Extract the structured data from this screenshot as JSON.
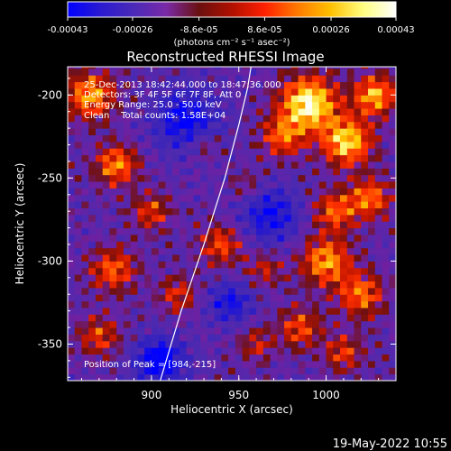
{
  "colors": {
    "background": "#000000",
    "foreground": "#ffffff",
    "colormap": [
      "#0000ff",
      "#2a1ad0",
      "#4a2ab8",
      "#7a2aa8",
      "#6a1010",
      "#b01000",
      "#ff2000",
      "#ff7a00",
      "#ffc000",
      "#ffff80",
      "#ffffff"
    ]
  },
  "colorbar": {
    "tick_labels": [
      "-0.00043",
      "-0.00026",
      "-8.6e-05",
      "8.6e-05",
      "0.00026",
      "0.00043"
    ],
    "unit_label": "(photons cm⁻² s⁻¹ asec⁻²)"
  },
  "image_text": {
    "time_range": "25-Dec-2013 18:42:44.000 to 18:47:36.000",
    "detectors": "Detectors: 3F 4F 5F 6F 7F 8F, Att 0",
    "energy_range": "Energy Range: 25.0 - 50.0 keV",
    "clean_counts": "Clean    Total counts: 1.58E+04",
    "peak_position": "Position of Peak = [984,-215]"
  },
  "footer": {
    "date": "19-May-2022 10:55"
  },
  "chart_data": {
    "type": "heatmap",
    "title": "Reconstructed RHESSI Image",
    "xlabel": "Heliocentric X (arcsec)",
    "ylabel": "Heliocentric Y (arcsec)",
    "xlim": [
      852,
      1040
    ],
    "ylim": [
      -372,
      -183
    ],
    "xticks": [
      900,
      950,
      1000
    ],
    "yticks": [
      -200,
      -250,
      -300,
      -350
    ],
    "colorbar_range": [
      -0.00043,
      0.00043
    ],
    "peak": {
      "x": 984,
      "y": -215
    },
    "limb_line": [
      [
        905,
        -372
      ],
      [
        917,
        -330
      ],
      [
        930,
        -290
      ],
      [
        942,
        -250
      ],
      [
        950,
        -218
      ],
      [
        955,
        -196
      ],
      [
        957,
        -183
      ]
    ],
    "grid": false,
    "legend": "none",
    "blobs": [
      {
        "x": 990,
        "y": -205,
        "r": 16,
        "a": 1.0
      },
      {
        "x": 1012,
        "y": -228,
        "r": 14,
        "a": 0.85
      },
      {
        "x": 1028,
        "y": -200,
        "r": 12,
        "a": 0.75
      },
      {
        "x": 975,
        "y": -225,
        "r": 12,
        "a": 0.55
      },
      {
        "x": 865,
        "y": -200,
        "r": 14,
        "a": 0.7
      },
      {
        "x": 880,
        "y": -242,
        "r": 12,
        "a": 0.65
      },
      {
        "x": 900,
        "y": -270,
        "r": 11,
        "a": 0.45
      },
      {
        "x": 878,
        "y": -305,
        "r": 13,
        "a": 0.55
      },
      {
        "x": 870,
        "y": -345,
        "r": 12,
        "a": 0.45
      },
      {
        "x": 915,
        "y": -320,
        "r": 11,
        "a": 0.4
      },
      {
        "x": 940,
        "y": -290,
        "r": 12,
        "a": 0.5
      },
      {
        "x": 965,
        "y": -305,
        "r": 10,
        "a": 0.35
      },
      {
        "x": 1005,
        "y": -270,
        "r": 12,
        "a": 0.55
      },
      {
        "x": 1025,
        "y": -262,
        "r": 12,
        "a": 0.6
      },
      {
        "x": 1000,
        "y": -300,
        "r": 14,
        "a": 0.7
      },
      {
        "x": 1020,
        "y": -320,
        "r": 13,
        "a": 0.6
      },
      {
        "x": 985,
        "y": -340,
        "r": 12,
        "a": 0.5
      },
      {
        "x": 1010,
        "y": -355,
        "r": 11,
        "a": 0.45
      },
      {
        "x": 960,
        "y": -350,
        "r": 10,
        "a": 0.35
      },
      {
        "x": 930,
        "y": -230,
        "r": 9,
        "a": 0.3
      },
      {
        "x": 955,
        "y": -255,
        "r": 9,
        "a": 0.25
      }
    ],
    "cold_spots": [
      {
        "x": 920,
        "y": -215,
        "r": 18,
        "a": 0.6
      },
      {
        "x": 905,
        "y": -360,
        "r": 14,
        "a": 0.7
      },
      {
        "x": 968,
        "y": -272,
        "r": 16,
        "a": 0.55
      },
      {
        "x": 945,
        "y": -325,
        "r": 12,
        "a": 0.5
      }
    ]
  }
}
